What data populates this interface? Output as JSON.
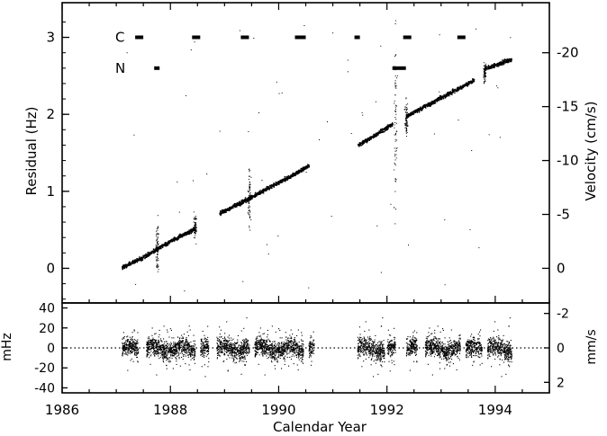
{
  "chart_data": [
    {
      "panel": "top",
      "type": "scatter",
      "xlabel": "",
      "ylabel": "Residual (Hz)",
      "ylabel_right": "Velocity (cm/s)",
      "xlim": [
        1986,
        1995
      ],
      "ylim": [
        -0.45,
        3.45
      ],
      "yticks": [
        0,
        1,
        2,
        3
      ],
      "yticks_right": [
        {
          "value": 0,
          "label": "0"
        },
        {
          "value": 0.7,
          "label": "-5"
        },
        {
          "value": 1.4,
          "label": "-10"
        },
        {
          "value": 2.1,
          "label": "-15"
        },
        {
          "value": 2.8,
          "label": "-20"
        }
      ],
      "marker_rows": [
        {
          "label": "C",
          "y": 3.0,
          "segments": [
            [
              1987.35,
              1987.5
            ],
            [
              1988.4,
              1988.55
            ],
            [
              1989.3,
              1989.45
            ],
            [
              1990.3,
              1990.5
            ],
            [
              1991.4,
              1991.5
            ],
            [
              1992.3,
              1992.45
            ],
            [
              1993.3,
              1993.45
            ]
          ]
        },
        {
          "label": "N",
          "y": 2.6,
          "segments": [
            [
              1987.7,
              1987.8
            ],
            [
              1992.1,
              1992.35
            ]
          ]
        }
      ],
      "series": [
        {
          "segments": [
            {
              "x": [
                1987.1,
                1987.5,
                1987.8,
                1988.1,
                1988.45
              ],
              "y": [
                0.02,
                0.15,
                0.28,
                0.4,
                0.52
              ]
            },
            {
              "x": [
                1988.9,
                1989.3,
                1989.8,
                1990.2,
                1990.55
              ],
              "y": [
                0.72,
                0.86,
                1.05,
                1.2,
                1.34
              ]
            },
            {
              "x": [
                1991.45,
                1991.8,
                1992.1
              ],
              "y": [
                1.6,
                1.75,
                1.88
              ]
            },
            {
              "x": [
                1992.35,
                1992.8,
                1993.2,
                1993.6
              ],
              "y": [
                1.98,
                2.15,
                2.3,
                2.45
              ]
            },
            {
              "x": [
                1993.8,
                1994.05,
                1994.3
              ],
              "y": [
                2.6,
                2.66,
                2.72
              ]
            }
          ]
        }
      ]
    },
    {
      "panel": "bottom",
      "type": "scatter",
      "xlabel": "Calendar Year",
      "ylabel": "mHz",
      "ylabel_right": "mm/s",
      "xlim": [
        1986,
        1995
      ],
      "ylim": [
        -45,
        45
      ],
      "yticks": [
        40,
        20,
        0,
        -20,
        -40
      ],
      "yticks_right": [
        {
          "value": 34.5,
          "label": "-2"
        },
        {
          "value": 0,
          "label": "0"
        },
        {
          "value": -34.5,
          "label": "2"
        }
      ],
      "xticks": [
        1986,
        1988,
        1990,
        1992,
        1994
      ],
      "zero_line": "dotted",
      "series": [
        {
          "intervals": [
            [
              1987.1,
              1987.4
            ],
            [
              1987.55,
              1988.45
            ],
            [
              1988.55,
              1988.7
            ],
            [
              1988.85,
              1989.45
            ],
            [
              1989.55,
              1990.45
            ],
            [
              1990.55,
              1990.65
            ],
            [
              1991.45,
              1991.95
            ],
            [
              1992.0,
              1992.15
            ],
            [
              1992.35,
              1992.55
            ],
            [
              1992.7,
              1993.35
            ],
            [
              1993.45,
              1993.75
            ],
            [
              1993.85,
              1994.3
            ]
          ]
        }
      ]
    }
  ]
}
